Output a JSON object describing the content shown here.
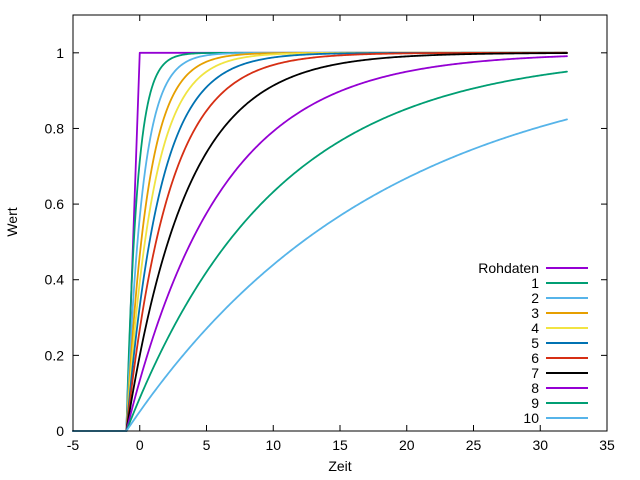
{
  "chart_data": {
    "type": "line",
    "title": "",
    "xlabel": "Zeit",
    "ylabel": "Wert",
    "xlim": [
      -5,
      35
    ],
    "ylim": [
      0,
      1.1
    ],
    "xticks": [
      -5,
      0,
      5,
      10,
      15,
      20,
      25,
      30,
      35
    ],
    "yticks": [
      0,
      0.2,
      0.4,
      0.6,
      0.8,
      1
    ],
    "grid": false,
    "legend_position": "right",
    "series": [
      {
        "name": "Rohdaten",
        "color": "#9400d3",
        "x": [
          -5,
          -1,
          0,
          32
        ],
        "y": [
          0,
          0,
          1,
          1
        ]
      },
      {
        "name": "1",
        "color": "#009e73",
        "tau": 0.8,
        "x": [
          -5,
          -1,
          -0.5,
          0,
          0.5,
          1,
          1.5,
          2,
          3,
          4,
          6,
          8,
          32
        ],
        "y": [
          0,
          0,
          0.45,
          0.69,
          0.83,
          0.91,
          0.95,
          0.97,
          0.99,
          0.995,
          1,
          1,
          1
        ]
      },
      {
        "name": "2",
        "color": "#56b4e9",
        "tau": 1.2,
        "x": [
          -5,
          -1,
          -0.5,
          0,
          0.5,
          1,
          1.5,
          2,
          3,
          4,
          6,
          8,
          32
        ],
        "y": [
          0,
          0,
          0.34,
          0.57,
          0.71,
          0.81,
          0.88,
          0.92,
          0.96,
          0.98,
          0.995,
          1,
          1
        ]
      },
      {
        "name": "3",
        "color": "#e69f00",
        "tau": 1.6,
        "x": [
          -5,
          -1,
          -0.5,
          0,
          0.5,
          1,
          1.5,
          2,
          3,
          4,
          6,
          8,
          10,
          32
        ],
        "y": [
          0,
          0,
          0.27,
          0.47,
          0.62,
          0.73,
          0.8,
          0.85,
          0.92,
          0.96,
          0.99,
          0.997,
          1,
          1
        ]
      },
      {
        "name": "4",
        "color": "#f0e442",
        "tau": 2.0,
        "x": [
          -5,
          -1,
          -0.5,
          0,
          0.5,
          1,
          1.5,
          2,
          3,
          4,
          6,
          8,
          10,
          32
        ],
        "y": [
          0,
          0,
          0.22,
          0.39,
          0.53,
          0.63,
          0.71,
          0.78,
          0.87,
          0.92,
          0.97,
          0.99,
          0.997,
          1
        ]
      },
      {
        "name": "5",
        "color": "#0072b2",
        "tau": 2.5,
        "x": [
          -5,
          -1,
          -0.5,
          0,
          0.5,
          1,
          2,
          3,
          4,
          6,
          8,
          10,
          12,
          32
        ],
        "y": [
          0,
          0,
          0.18,
          0.33,
          0.45,
          0.55,
          0.7,
          0.8,
          0.86,
          0.94,
          0.97,
          0.99,
          0.995,
          1
        ]
      },
      {
        "name": "6",
        "color": "#d62f14",
        "tau": 3.2,
        "x": [
          -5,
          -1,
          0,
          1,
          2,
          3,
          4,
          5,
          6,
          8,
          10,
          12,
          15,
          20,
          32
        ],
        "y": [
          0,
          0,
          0.27,
          0.46,
          0.61,
          0.71,
          0.79,
          0.85,
          0.89,
          0.94,
          0.97,
          0.98,
          0.993,
          0.999,
          1
        ]
      },
      {
        "name": "7",
        "color": "#000000",
        "tau": 4.5,
        "x": [
          -5,
          -1,
          0,
          1,
          2,
          3,
          4,
          5,
          6,
          8,
          10,
          12,
          15,
          20,
          25,
          32
        ],
        "y": [
          0,
          0,
          0.2,
          0.36,
          0.49,
          0.59,
          0.67,
          0.74,
          0.79,
          0.87,
          0.91,
          0.95,
          0.97,
          0.99,
          0.997,
          1
        ]
      },
      {
        "name": "8",
        "color": "#9400d3",
        "tau": 7.0,
        "x": [
          -5,
          -1,
          0,
          1,
          2,
          4,
          6,
          8,
          10,
          12,
          14,
          16,
          20,
          25,
          32
        ],
        "y": [
          0,
          0,
          0.14,
          0.25,
          0.35,
          0.51,
          0.63,
          0.73,
          0.79,
          0.85,
          0.89,
          0.91,
          0.95,
          0.98,
          0.99
        ]
      },
      {
        "name": "9",
        "color": "#009e73",
        "tau": 11.0,
        "x": [
          -5,
          -1,
          0,
          2,
          4,
          6,
          8,
          10,
          12,
          14,
          16,
          18,
          20,
          24,
          28,
          32
        ],
        "y": [
          0,
          0,
          0.09,
          0.24,
          0.37,
          0.47,
          0.56,
          0.63,
          0.7,
          0.75,
          0.79,
          0.83,
          0.86,
          0.9,
          0.93,
          0.95
        ]
      },
      {
        "name": "10",
        "color": "#56b4e9",
        "tau": 19.0,
        "x": [
          -5,
          -1,
          0,
          2,
          4,
          6,
          8,
          10,
          12,
          14,
          16,
          18,
          20,
          22,
          24,
          26,
          28,
          30,
          32
        ],
        "y": [
          0,
          0,
          0.05,
          0.15,
          0.24,
          0.32,
          0.39,
          0.45,
          0.51,
          0.56,
          0.6,
          0.64,
          0.67,
          0.7,
          0.73,
          0.76,
          0.78,
          0.8,
          0.82
        ]
      }
    ]
  }
}
